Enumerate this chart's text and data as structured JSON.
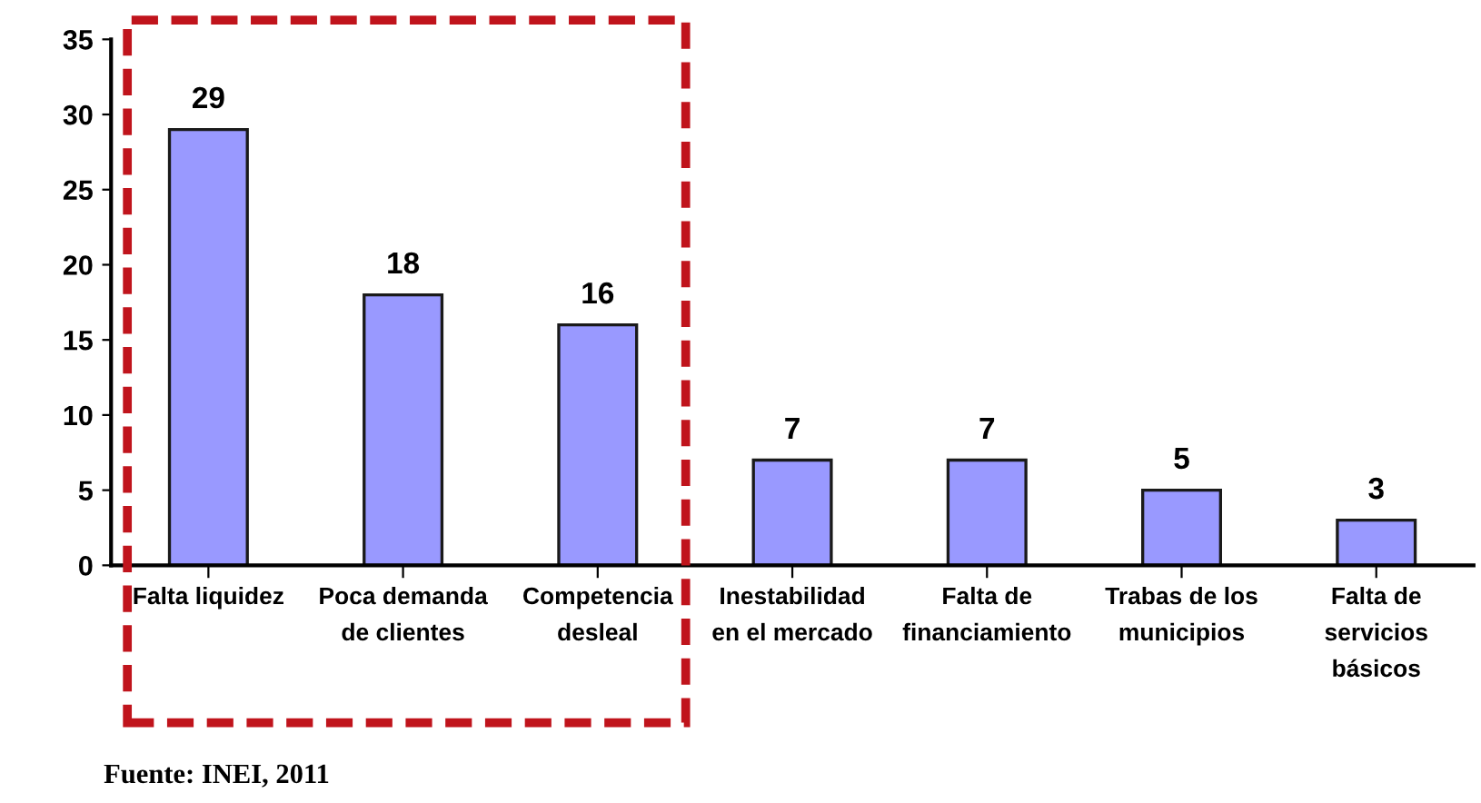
{
  "chart_data": {
    "type": "bar",
    "categories": [
      "Falta liquidez",
      "Poca demanda de clientes",
      "Competencia desleal",
      "Inestabilidad en el mercado",
      "Falta de financiamiento",
      "Trabas de los municipios",
      "Falta de servicios básicos"
    ],
    "values": [
      29,
      18,
      16,
      7,
      7,
      5,
      3
    ],
    "color": "#9999ff",
    "ylim": [
      0,
      35
    ],
    "yticks": [
      0,
      5,
      10,
      15,
      20,
      25,
      30,
      35
    ],
    "data_labels": true,
    "grid": false,
    "legend": false,
    "annotations": [
      "Fuente: INEI, 2011"
    ]
  }
}
